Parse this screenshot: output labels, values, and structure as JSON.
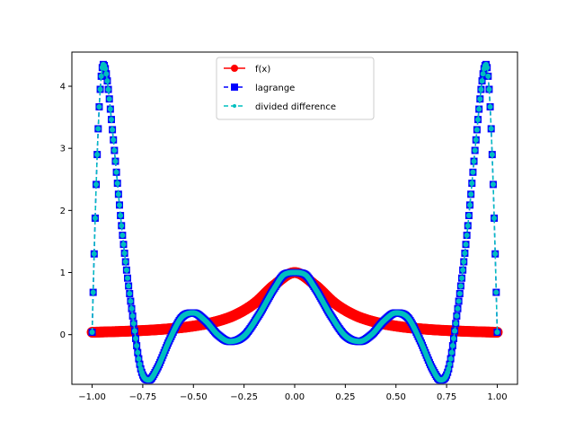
{
  "chart_data": {
    "type": "line",
    "title": "",
    "xlabel": "",
    "ylabel": "",
    "xlim": [
      -1.1,
      1.1
    ],
    "ylim": [
      -0.8,
      4.55
    ],
    "xticks": [
      -1.0,
      -0.75,
      -0.5,
      -0.25,
      0.0,
      0.25,
      0.5,
      0.75,
      1.0
    ],
    "xtick_labels": [
      "−1.00",
      "−0.75",
      "−0.50",
      "−0.25",
      "0.00",
      "0.25",
      "0.50",
      "0.75",
      "1.00"
    ],
    "yticks": [
      0,
      1,
      2,
      3,
      4
    ],
    "ytick_labels": [
      "0",
      "1",
      "2",
      "3",
      "4"
    ],
    "grid": false,
    "legend_position": "top-center",
    "series": [
      {
        "name": "f(x)",
        "color": "#ff0000",
        "marker": "circle",
        "linestyle": "solid",
        "points": [
          [
            -1.0,
            0.038
          ],
          [
            -0.9,
            0.047
          ],
          [
            -0.8,
            0.059
          ],
          [
            -0.7,
            0.075
          ],
          [
            -0.6,
            0.1
          ],
          [
            -0.5,
            0.138
          ],
          [
            -0.4,
            0.2
          ],
          [
            -0.3,
            0.308
          ],
          [
            -0.2,
            0.5
          ],
          [
            -0.1,
            0.8
          ],
          [
            0.0,
            1.0
          ],
          [
            0.1,
            0.8
          ],
          [
            0.2,
            0.5
          ],
          [
            0.3,
            0.308
          ],
          [
            0.4,
            0.2
          ],
          [
            0.5,
            0.138
          ],
          [
            0.6,
            0.1
          ],
          [
            0.7,
            0.075
          ],
          [
            0.8,
            0.059
          ],
          [
            0.9,
            0.047
          ],
          [
            1.0,
            0.038
          ]
        ]
      },
      {
        "name": "lagrange",
        "color": "#0000ff",
        "marker": "square",
        "linestyle": "dashed",
        "points": [
          [
            -1.0,
            0.038
          ],
          [
            -0.99,
            1.3
          ],
          [
            -0.975,
            2.9
          ],
          [
            -0.96,
            3.95
          ],
          [
            -0.945,
            4.35
          ],
          [
            -0.93,
            4.2
          ],
          [
            -0.9,
            3.3
          ],
          [
            -0.85,
            1.6
          ],
          [
            -0.8,
            0.3
          ],
          [
            -0.76,
            -0.55
          ],
          [
            -0.72,
            -0.73
          ],
          [
            -0.68,
            -0.55
          ],
          [
            -0.62,
            -0.1
          ],
          [
            -0.56,
            0.27
          ],
          [
            -0.5,
            0.35
          ],
          [
            -0.44,
            0.22
          ],
          [
            -0.38,
            0.0
          ],
          [
            -0.32,
            -0.11
          ],
          [
            -0.25,
            -0.02
          ],
          [
            -0.18,
            0.3
          ],
          [
            -0.1,
            0.75
          ],
          [
            -0.05,
            0.97
          ],
          [
            0.0,
            1.0
          ],
          [
            0.05,
            0.97
          ],
          [
            0.1,
            0.75
          ],
          [
            0.18,
            0.3
          ],
          [
            0.25,
            -0.02
          ],
          [
            0.32,
            -0.11
          ],
          [
            0.38,
            0.0
          ],
          [
            0.44,
            0.22
          ],
          [
            0.5,
            0.35
          ],
          [
            0.56,
            0.27
          ],
          [
            0.62,
            -0.1
          ],
          [
            0.68,
            -0.55
          ],
          [
            0.72,
            -0.73
          ],
          [
            0.76,
            -0.55
          ],
          [
            0.8,
            0.3
          ],
          [
            0.85,
            1.6
          ],
          [
            0.9,
            3.3
          ],
          [
            0.93,
            4.2
          ],
          [
            0.945,
            4.35
          ],
          [
            0.96,
            3.95
          ],
          [
            0.975,
            2.9
          ],
          [
            0.99,
            1.3
          ],
          [
            1.0,
            0.038
          ]
        ]
      },
      {
        "name": "divided difference",
        "color": "#00bfbf",
        "marker": "point",
        "linestyle": "dashed",
        "points": [
          [
            -1.0,
            0.038
          ],
          [
            -0.99,
            1.3
          ],
          [
            -0.975,
            2.9
          ],
          [
            -0.96,
            3.95
          ],
          [
            -0.945,
            4.35
          ],
          [
            -0.93,
            4.2
          ],
          [
            -0.9,
            3.3
          ],
          [
            -0.85,
            1.6
          ],
          [
            -0.8,
            0.3
          ],
          [
            -0.76,
            -0.55
          ],
          [
            -0.72,
            -0.73
          ],
          [
            -0.68,
            -0.55
          ],
          [
            -0.62,
            -0.1
          ],
          [
            -0.56,
            0.27
          ],
          [
            -0.5,
            0.35
          ],
          [
            -0.44,
            0.22
          ],
          [
            -0.38,
            0.0
          ],
          [
            -0.32,
            -0.11
          ],
          [
            -0.25,
            -0.02
          ],
          [
            -0.18,
            0.3
          ],
          [
            -0.1,
            0.75
          ],
          [
            -0.05,
            0.97
          ],
          [
            0.0,
            1.0
          ],
          [
            0.05,
            0.97
          ],
          [
            0.1,
            0.75
          ],
          [
            0.18,
            0.3
          ],
          [
            0.25,
            -0.02
          ],
          [
            0.32,
            -0.11
          ],
          [
            0.38,
            0.0
          ],
          [
            0.44,
            0.22
          ],
          [
            0.5,
            0.35
          ],
          [
            0.56,
            0.27
          ],
          [
            0.62,
            -0.1
          ],
          [
            0.68,
            -0.55
          ],
          [
            0.72,
            -0.73
          ],
          [
            0.76,
            -0.55
          ],
          [
            0.8,
            0.3
          ],
          [
            0.85,
            1.6
          ],
          [
            0.9,
            3.3
          ],
          [
            0.93,
            4.2
          ],
          [
            0.945,
            4.35
          ],
          [
            0.96,
            3.95
          ],
          [
            0.975,
            2.9
          ],
          [
            0.99,
            1.3
          ],
          [
            1.0,
            0.038
          ]
        ]
      }
    ]
  }
}
